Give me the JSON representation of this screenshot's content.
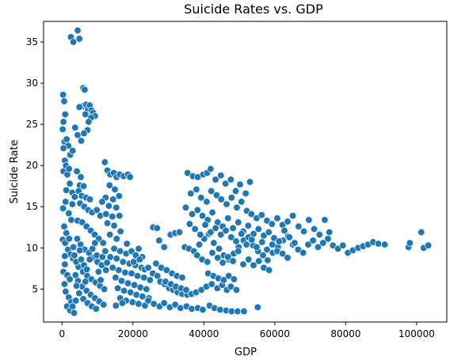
{
  "chart_data": {
    "type": "scatter",
    "title": "Suicide Rates vs. GDP",
    "xlabel": "GDP",
    "ylabel": "Suicide Rate",
    "xlim": [
      -5200,
      108500
    ],
    "ylim": [
      1.0,
      37.5
    ],
    "xticks": [
      0,
      20000,
      40000,
      60000,
      80000,
      100000
    ],
    "yticks": [
      5,
      10,
      15,
      20,
      25,
      30,
      35
    ],
    "grid": false,
    "legend": "none",
    "marker_color": "#1f77b4",
    "points": [
      [
        2500,
        35.6
      ],
      [
        3200,
        35.0
      ],
      [
        4400,
        36.4
      ],
      [
        4900,
        35.4
      ],
      [
        6000,
        29.4
      ],
      [
        6400,
        29.2
      ],
      [
        5800,
        27.2
      ],
      [
        6800,
        27.4
      ],
      [
        7300,
        26.8
      ],
      [
        7800,
        27.3
      ],
      [
        8300,
        26.7
      ],
      [
        8800,
        26.4
      ],
      [
        9300,
        26.0
      ],
      [
        8200,
        25.8
      ],
      [
        7500,
        25.3
      ],
      [
        6600,
        26.2
      ],
      [
        4900,
        27.1
      ],
      [
        3700,
        24.6
      ],
      [
        4400,
        23.7
      ],
      [
        5400,
        23.0
      ],
      [
        7200,
        24.3
      ],
      [
        6200,
        23.9
      ],
      [
        300,
        28.6
      ],
      [
        600,
        27.8
      ],
      [
        900,
        26.2
      ],
      [
        400,
        25.3
      ],
      [
        200,
        24.4
      ],
      [
        700,
        22.9
      ],
      [
        1300,
        23.2
      ],
      [
        1800,
        22.4
      ],
      [
        2300,
        21.3
      ],
      [
        3000,
        21.8
      ],
      [
        800,
        20.6
      ],
      [
        400,
        19.3
      ],
      [
        1500,
        18.9
      ],
      [
        2200,
        17.8
      ],
      [
        2900,
        16.7
      ],
      [
        3600,
        16.2
      ],
      [
        1000,
        15.6
      ],
      [
        300,
        14.8
      ],
      [
        1900,
        14.2
      ],
      [
        2600,
        13.4
      ],
      [
        600,
        12.6
      ],
      [
        1200,
        11.8
      ],
      [
        200,
        11.0
      ],
      [
        900,
        10.6
      ],
      [
        1700,
        9.8
      ],
      [
        2400,
        9.2
      ],
      [
        3100,
        8.7
      ],
      [
        800,
        8.0
      ],
      [
        400,
        7.1
      ],
      [
        1500,
        6.7
      ],
      [
        2200,
        6.2
      ],
      [
        700,
        5.6
      ],
      [
        1000,
        4.7
      ],
      [
        1900,
        4.0
      ],
      [
        2600,
        3.4
      ],
      [
        1400,
        2.9
      ],
      [
        2300,
        2.4
      ],
      [
        3400,
        2.1
      ],
      [
        3000,
        2.9
      ],
      [
        400,
        22.1
      ],
      [
        1100,
        20.0
      ],
      [
        2000,
        19.6
      ],
      [
        1200,
        17.0
      ],
      [
        2900,
        15.3
      ],
      [
        2000,
        11.1
      ],
      [
        3200,
        10.1
      ],
      [
        800,
        9.0
      ],
      [
        4200,
        19.3
      ],
      [
        5300,
        18.6
      ],
      [
        5000,
        17.6
      ],
      [
        6100,
        17.5
      ],
      [
        4700,
        16.9
      ],
      [
        5600,
        16.3
      ],
      [
        6800,
        16.1
      ],
      [
        7900,
        15.9
      ],
      [
        5100,
        15.4
      ],
      [
        6300,
        15.0
      ],
      [
        7400,
        14.6
      ],
      [
        8500,
        14.3
      ],
      [
        9800,
        14.6
      ],
      [
        10800,
        13.9
      ],
      [
        4400,
        13.3
      ],
      [
        5700,
        13.1
      ],
      [
        6900,
        12.6
      ],
      [
        8100,
        12.1
      ],
      [
        9200,
        11.6
      ],
      [
        10400,
        11.1
      ],
      [
        11600,
        10.6
      ],
      [
        5200,
        10.4
      ],
      [
        6400,
        9.8
      ],
      [
        7600,
        9.4
      ],
      [
        8800,
        8.8
      ],
      [
        10000,
        8.3
      ],
      [
        11200,
        7.9
      ],
      [
        12400,
        7.3
      ],
      [
        4600,
        7.7
      ],
      [
        5900,
        7.1
      ],
      [
        7100,
        6.6
      ],
      [
        8300,
        6.2
      ],
      [
        9500,
        5.8
      ],
      [
        10700,
        5.4
      ],
      [
        11900,
        5.0
      ],
      [
        4500,
        6.0
      ],
      [
        5700,
        5.3
      ],
      [
        6900,
        4.8
      ],
      [
        8100,
        4.3
      ],
      [
        9300,
        3.9
      ],
      [
        10500,
        3.5
      ],
      [
        11700,
        3.1
      ],
      [
        4800,
        4.5
      ],
      [
        6000,
        3.8
      ],
      [
        7200,
        3.3
      ],
      [
        8400,
        2.9
      ],
      [
        9600,
        2.6
      ],
      [
        3500,
        9.1
      ],
      [
        4000,
        8.3
      ],
      [
        3800,
        6.7
      ],
      [
        4100,
        5.4
      ],
      [
        3900,
        3.6
      ],
      [
        4300,
        11.1
      ],
      [
        5000,
        9.7
      ],
      [
        5400,
        8.6
      ],
      [
        6200,
        7.9
      ],
      [
        6600,
        5.9
      ],
      [
        7000,
        7.4
      ],
      [
        7800,
        8.6
      ],
      [
        8600,
        9.9
      ],
      [
        9300,
        10.6
      ],
      [
        9800,
        9.1
      ],
      [
        10300,
        7.1
      ],
      [
        10900,
        6.1
      ],
      [
        11400,
        8.9
      ],
      [
        12200,
        9.6
      ],
      [
        12700,
        8.2
      ],
      [
        12100,
        20.4
      ],
      [
        12800,
        19.4
      ],
      [
        13600,
        18.9
      ],
      [
        14600,
        19.1
      ],
      [
        15400,
        18.6
      ],
      [
        16300,
        18.9
      ],
      [
        17400,
        18.7
      ],
      [
        18600,
        18.9
      ],
      [
        19200,
        18.6
      ],
      [
        13400,
        17.6
      ],
      [
        14900,
        17.1
      ],
      [
        12300,
        16.1
      ],
      [
        14400,
        15.9
      ],
      [
        16100,
        16.3
      ],
      [
        11300,
        15.6
      ],
      [
        13200,
        15.1
      ],
      [
        15300,
        14.9
      ],
      [
        12400,
        14.1
      ],
      [
        14200,
        13.8
      ],
      [
        16200,
        13.9
      ],
      [
        12800,
        13.0
      ],
      [
        14700,
        12.7
      ],
      [
        16500,
        12.0
      ],
      [
        13500,
        11.6
      ],
      [
        15400,
        11.1
      ],
      [
        14700,
        9.9
      ],
      [
        16400,
        9.6
      ],
      [
        18100,
        9.3
      ],
      [
        13600,
        8.9
      ],
      [
        15400,
        8.7
      ],
      [
        17200,
        8.3
      ],
      [
        19000,
        8.1
      ],
      [
        20700,
        7.9
      ],
      [
        22400,
        7.6
      ],
      [
        14300,
        7.6
      ],
      [
        16000,
        7.3
      ],
      [
        17800,
        7.0
      ],
      [
        19600,
        6.9
      ],
      [
        21300,
        6.6
      ],
      [
        23100,
        6.4
      ],
      [
        24800,
        6.1
      ],
      [
        15100,
        6.4
      ],
      [
        16800,
        6.0
      ],
      [
        18600,
        5.7
      ],
      [
        20400,
        5.5
      ],
      [
        22100,
        5.2
      ],
      [
        23800,
        5.0
      ],
      [
        15700,
        5.1
      ],
      [
        17500,
        4.8
      ],
      [
        19300,
        4.6
      ],
      [
        21000,
        4.3
      ],
      [
        22700,
        4.1
      ],
      [
        24500,
        3.9
      ],
      [
        16400,
        3.9
      ],
      [
        18100,
        3.6
      ],
      [
        19900,
        3.4
      ],
      [
        21600,
        3.2
      ],
      [
        23400,
        3.0
      ],
      [
        15200,
        3.0
      ],
      [
        17000,
        3.3
      ],
      [
        18300,
        10.5
      ],
      [
        19600,
        9.6
      ],
      [
        20800,
        9.1
      ],
      [
        21600,
        9.9
      ],
      [
        22600,
        8.9
      ],
      [
        20200,
        8.3
      ],
      [
        21900,
        8.6
      ],
      [
        23300,
        7.4
      ],
      [
        24300,
        7.6
      ],
      [
        25600,
        6.9
      ],
      [
        26900,
        6.6
      ],
      [
        27700,
        5.9
      ],
      [
        28900,
        5.6
      ],
      [
        30200,
        5.1
      ],
      [
        31300,
        4.9
      ],
      [
        32600,
        4.6
      ],
      [
        33900,
        4.4
      ],
      [
        35300,
        4.3
      ],
      [
        36500,
        4.4
      ],
      [
        37800,
        4.6
      ],
      [
        39300,
        4.9
      ],
      [
        40700,
        5.3
      ],
      [
        42200,
        5.6
      ],
      [
        43800,
        5.1
      ],
      [
        45200,
        5.5
      ],
      [
        46500,
        4.9
      ],
      [
        47600,
        5.3
      ],
      [
        49200,
        4.9
      ],
      [
        24300,
        3.6
      ],
      [
        25900,
        3.2
      ],
      [
        27500,
        2.9
      ],
      [
        28800,
        3.3
      ],
      [
        30400,
        2.8
      ],
      [
        31900,
        3.1
      ],
      [
        33400,
        2.7
      ],
      [
        35100,
        2.9
      ],
      [
        36600,
        2.6
      ],
      [
        38300,
        2.7
      ],
      [
        39700,
        2.5
      ],
      [
        41600,
        3.0
      ],
      [
        43000,
        2.7
      ],
      [
        44600,
        2.5
      ],
      [
        46300,
        2.4
      ],
      [
        47800,
        2.3
      ],
      [
        49500,
        2.3
      ],
      [
        51300,
        2.3
      ],
      [
        55200,
        2.8
      ],
      [
        25700,
        12.5
      ],
      [
        26800,
        12.4
      ],
      [
        27400,
        10.9
      ],
      [
        28800,
        10.1
      ],
      [
        30600,
        11.6
      ],
      [
        31900,
        11.8
      ],
      [
        33100,
        11.9
      ],
      [
        34600,
        10.1
      ],
      [
        35800,
        9.9
      ],
      [
        37200,
        9.6
      ],
      [
        38700,
        10.4
      ],
      [
        40100,
        11.1
      ],
      [
        41400,
        11.7
      ],
      [
        42800,
        10.6
      ],
      [
        44300,
        9.9
      ],
      [
        45600,
        9.1
      ],
      [
        47000,
        8.6
      ],
      [
        48400,
        9.3
      ],
      [
        49800,
        10.1
      ],
      [
        51200,
        10.9
      ],
      [
        52600,
        11.3
      ],
      [
        53900,
        10.3
      ],
      [
        55300,
        9.6
      ],
      [
        56700,
        9.1
      ],
      [
        58000,
        8.5
      ],
      [
        59400,
        9.4
      ],
      [
        60900,
        10.1
      ],
      [
        62300,
        10.9
      ],
      [
        63700,
        11.4
      ],
      [
        65100,
        10.4
      ],
      [
        66600,
        9.8
      ],
      [
        68000,
        9.4
      ],
      [
        69400,
        10.4
      ],
      [
        70800,
        10.9
      ],
      [
        72200,
        10.1
      ],
      [
        73600,
        10.6
      ],
      [
        75000,
        11.1
      ],
      [
        76400,
        10.3
      ],
      [
        77800,
        9.9
      ],
      [
        79200,
        10.3
      ],
      [
        80600,
        9.4
      ],
      [
        82000,
        9.7
      ],
      [
        83500,
        10.0
      ],
      [
        84900,
        10.2
      ],
      [
        86300,
        10.4
      ],
      [
        87700,
        10.7
      ],
      [
        89200,
        10.5
      ],
      [
        91000,
        10.4
      ],
      [
        97700,
        10.1
      ],
      [
        98100,
        10.6
      ],
      [
        101300,
        11.9
      ],
      [
        102000,
        10.0
      ],
      [
        103300,
        10.3
      ],
      [
        35400,
        19.1
      ],
      [
        36900,
        18.7
      ],
      [
        38300,
        18.6
      ],
      [
        39800,
        18.9
      ],
      [
        40900,
        19.1
      ],
      [
        41900,
        19.6
      ],
      [
        43300,
        18.3
      ],
      [
        44800,
        18.8
      ],
      [
        46100,
        17.8
      ],
      [
        47600,
        18.3
      ],
      [
        49000,
        16.9
      ],
      [
        50200,
        17.7
      ],
      [
        51800,
        16.6
      ],
      [
        53000,
        18.0
      ],
      [
        36300,
        16.6
      ],
      [
        37900,
        17.1
      ],
      [
        39200,
        16.1
      ],
      [
        40800,
        15.6
      ],
      [
        42100,
        16.9
      ],
      [
        43600,
        16.4
      ],
      [
        44900,
        15.9
      ],
      [
        46400,
        15.3
      ],
      [
        47800,
        16.1
      ],
      [
        49300,
        14.9
      ],
      [
        50600,
        15.6
      ],
      [
        52100,
        14.5
      ],
      [
        53400,
        14.1
      ],
      [
        54900,
        13.6
      ],
      [
        56300,
        14.0
      ],
      [
        57800,
        13.3
      ],
      [
        59200,
        12.9
      ],
      [
        60700,
        13.6
      ],
      [
        62200,
        12.8
      ],
      [
        63600,
        13.2
      ],
      [
        65100,
        13.9
      ],
      [
        66700,
        12.6
      ],
      [
        68200,
        12.0
      ],
      [
        69600,
        13.4
      ],
      [
        71100,
        12.3
      ],
      [
        72600,
        11.6
      ],
      [
        74100,
        13.4
      ],
      [
        75400,
        11.9
      ],
      [
        34900,
        14.9
      ],
      [
        36700,
        14.1
      ],
      [
        38200,
        14.6
      ],
      [
        39600,
        13.9
      ],
      [
        41100,
        13.4
      ],
      [
        42400,
        14.3
      ],
      [
        43900,
        13.1
      ],
      [
        45300,
        12.6
      ],
      [
        46800,
        13.6
      ],
      [
        48200,
        12.4
      ],
      [
        49700,
        13.1
      ],
      [
        51100,
        12.0
      ],
      [
        52500,
        12.7
      ],
      [
        54000,
        11.7
      ],
      [
        55400,
        12.3
      ],
      [
        56900,
        11.5
      ],
      [
        58300,
        11.9
      ],
      [
        59800,
        11.2
      ],
      [
        61200,
        10.8
      ],
      [
        62700,
        12.1
      ],
      [
        64100,
        11.3
      ],
      [
        65600,
        10.6
      ],
      [
        36000,
        12.9
      ],
      [
        37500,
        12.3
      ],
      [
        39000,
        11.6
      ],
      [
        40400,
        12.8
      ],
      [
        41900,
        11.9
      ],
      [
        43300,
        12.4
      ],
      [
        44800,
        11.6
      ],
      [
        46200,
        12.1
      ],
      [
        47700,
        11.3
      ],
      [
        49100,
        10.8
      ],
      [
        50600,
        11.7
      ],
      [
        52000,
        10.4
      ],
      [
        53500,
        11.0
      ],
      [
        54900,
        10.1
      ],
      [
        56400,
        10.7
      ],
      [
        57800,
        9.8
      ],
      [
        59300,
        10.4
      ],
      [
        60700,
        9.6
      ],
      [
        62200,
        9.3
      ],
      [
        63600,
        8.8
      ],
      [
        38100,
        9.1
      ],
      [
        39500,
        8.6
      ],
      [
        41000,
        8.3
      ],
      [
        42400,
        9.4
      ],
      [
        43900,
        8.8
      ],
      [
        45300,
        8.2
      ],
      [
        46800,
        8.9
      ],
      [
        48200,
        8.4
      ],
      [
        49700,
        9.6
      ],
      [
        51100,
        8.0
      ],
      [
        52600,
        8.6
      ],
      [
        54000,
        7.9
      ],
      [
        55500,
        8.4
      ],
      [
        56900,
        7.6
      ],
      [
        58400,
        7.3
      ],
      [
        41200,
        6.9
      ],
      [
        42700,
        6.6
      ],
      [
        44100,
        6.3
      ],
      [
        45600,
        6.1
      ],
      [
        47000,
        6.6
      ],
      [
        48500,
        6.2
      ],
      [
        26500,
        8.1
      ],
      [
        28000,
        7.6
      ],
      [
        29500,
        7.3
      ],
      [
        31000,
        6.9
      ],
      [
        32400,
        6.6
      ],
      [
        33900,
        6.4
      ],
      [
        29200,
        5.9
      ],
      [
        30700,
        5.6
      ],
      [
        32100,
        5.3
      ],
      [
        33600,
        5.1
      ],
      [
        35000,
        4.9
      ]
    ]
  }
}
